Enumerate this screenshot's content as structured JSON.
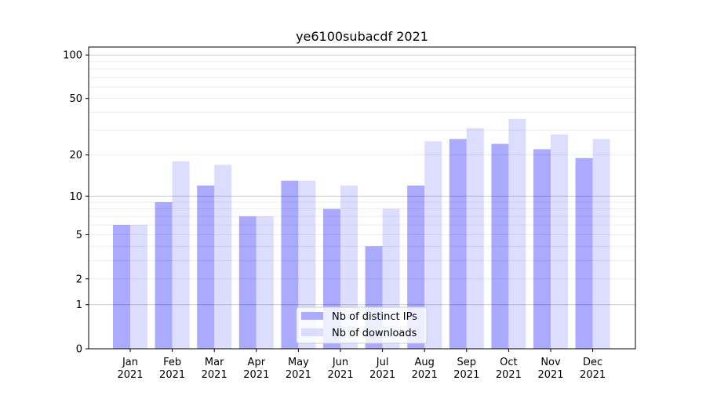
{
  "chart_data": {
    "type": "bar",
    "title": "ye6100subacdf 2021",
    "xlabel": "",
    "ylabel": "",
    "yscale": "log(1+y)",
    "ylim": [
      0,
      110
    ],
    "yticks": [
      0,
      1,
      2,
      5,
      10,
      20,
      50,
      100
    ],
    "grid": true,
    "legend_position": "bottom-center",
    "categories": [
      "Jan\n2021",
      "Feb\n2021",
      "Mar\n2021",
      "Apr\n2021",
      "May\n2021",
      "Jun\n2021",
      "Jul\n2021",
      "Aug\n2021",
      "Sep\n2021",
      "Oct\n2021",
      "Nov\n2021",
      "Dec\n2021"
    ],
    "series": [
      {
        "name": "Nb of distinct IPs",
        "color": "#aaaaff",
        "values": [
          6,
          9,
          12,
          7,
          13,
          8,
          4,
          12,
          26,
          24,
          22,
          19
        ]
      },
      {
        "name": "Nb of downloads",
        "color": "#ddddff",
        "values": [
          6,
          18,
          17,
          7,
          13,
          12,
          8,
          25,
          31,
          36,
          28,
          26
        ]
      }
    ]
  }
}
